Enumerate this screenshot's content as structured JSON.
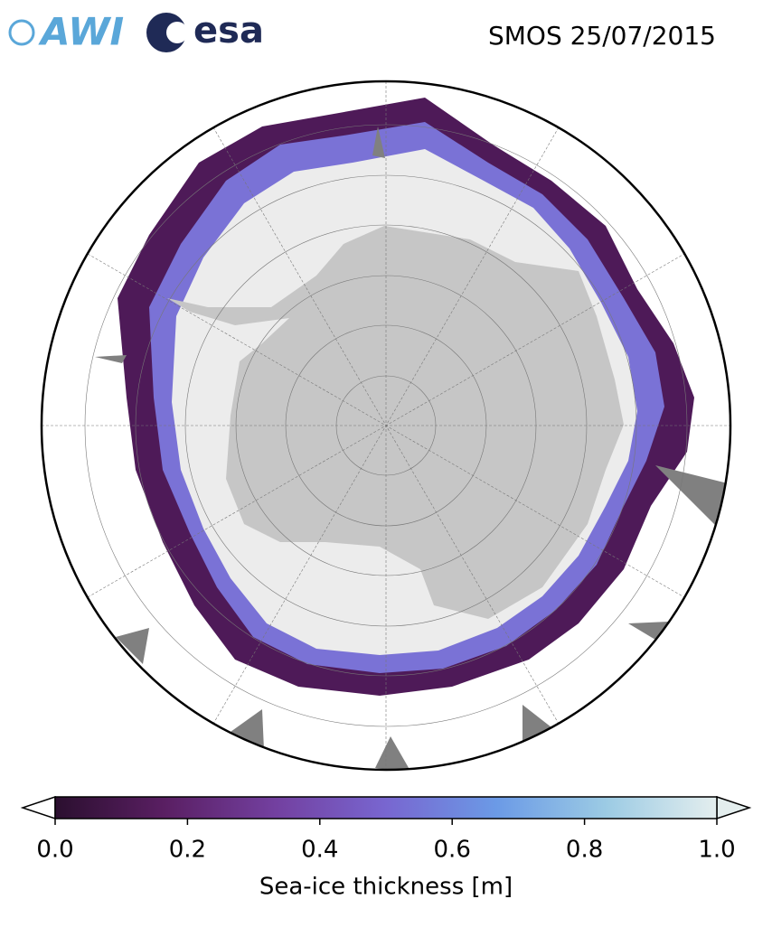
{
  "header": {
    "logos": [
      "AWI",
      "esa"
    ],
    "title": "SMOS 25/07/2015"
  },
  "colorbar": {
    "label": "Sea-ice thickness [m]",
    "lim": [
      0,
      1
    ],
    "ticks": [
      {
        "value": 0,
        "label": "0.0"
      },
      {
        "value": 0.2,
        "label": "0.2"
      },
      {
        "value": 0.4,
        "label": "0.4"
      },
      {
        "value": 0.6,
        "label": "0.6"
      },
      {
        "value": 0.8,
        "label": "0.8"
      },
      {
        "value": 1,
        "label": "1.0"
      }
    ],
    "colors": [
      "#2b0f2f",
      "#5a1f63",
      "#7340a0",
      "#7866d0",
      "#6b9ae6",
      "#9ccbe4",
      "#e4eeee"
    ]
  }
}
